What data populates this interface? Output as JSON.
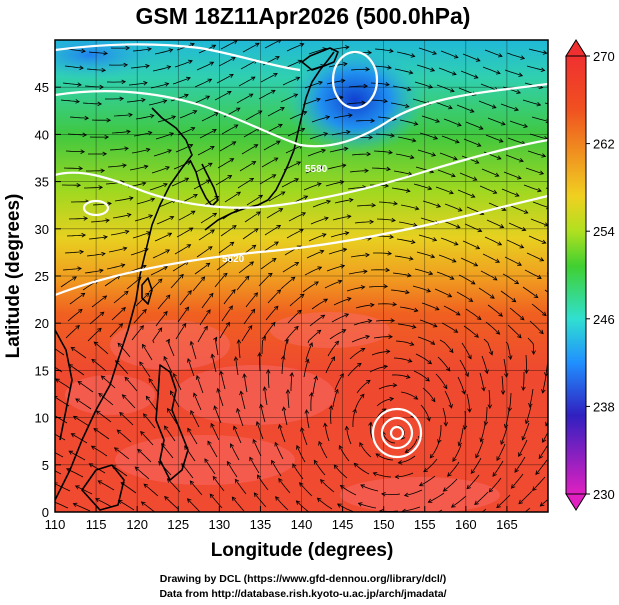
{
  "title": "GSM 18Z11Apr2026 (500.0hPa)",
  "xlabel": "Longitude (degrees)",
  "ylabel": "Latitude  (degrees)",
  "credits": [
    "Drawing by DCL (https://www.gfd-dennou.org/library/dcl/)",
    "Data from http://database.rish.kyoto-u.ac.jp/arch/jmadata/"
  ],
  "chart_data": {
    "type": "heatmap",
    "title": "GSM 18Z11Apr2026 (500.0hPa)",
    "xlabel": "Longitude (degrees)",
    "ylabel": "Latitude  (degrees)",
    "xlim": [
      110,
      170
    ],
    "ylim": [
      0,
      50
    ],
    "x_ticks": [
      110,
      115,
      120,
      125,
      130,
      135,
      140,
      145,
      150,
      155,
      160,
      165
    ],
    "y_ticks": [
      0,
      5,
      10,
      15,
      20,
      25,
      30,
      35,
      40,
      45
    ],
    "grid": true,
    "colorbar": {
      "min": 230,
      "max": 270,
      "tick_values": [
        270,
        262,
        254,
        246,
        238,
        230
      ],
      "colors": [
        "#e020c0",
        "#3020c0",
        "#2090ff",
        "#30e0d0",
        "#40d030",
        "#b0e020",
        "#f0d020",
        "#f09020",
        "#f05020",
        "#f03030"
      ],
      "placement": "right"
    },
    "contour_labels": [
      "5580",
      "5820"
    ],
    "features": {
      "cyclone_center": {
        "lon": 151,
        "lat": 9.5
      },
      "cold_low_center": {
        "lon": 148,
        "lat": 45
      }
    }
  },
  "colors": {
    "warm": "#ef4a30",
    "cold": "#2a6ee0",
    "contour": "#ffffff",
    "coastline": "#000000"
  }
}
